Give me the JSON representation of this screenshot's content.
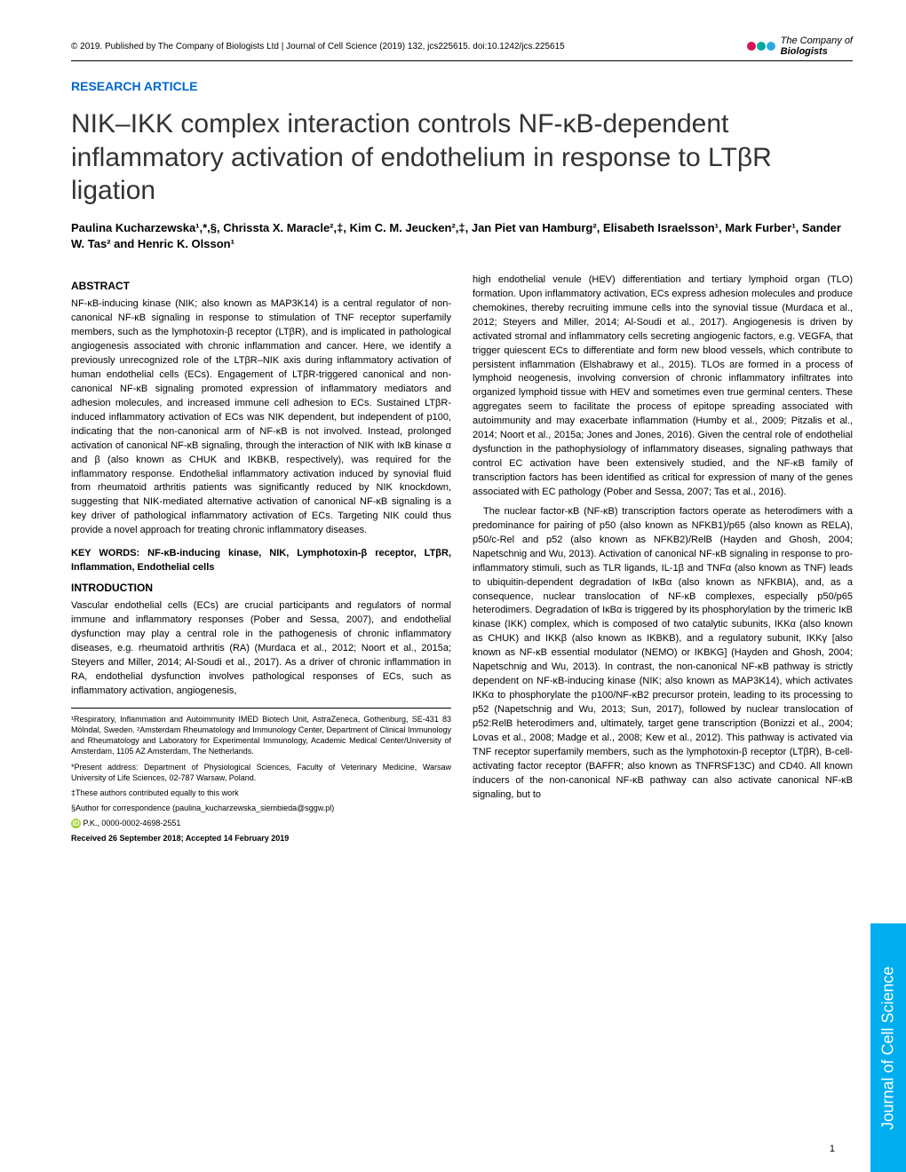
{
  "header": {
    "copyright": "© 2019. Published by The Company of Biologists Ltd | Journal of Cell Science (2019) 132, jcs225615. doi:10.1242/jcs.225615",
    "logo_text_1": "The Company of",
    "logo_text_2": "Biologists",
    "logo_colors": [
      "#d4145a",
      "#00a99d",
      "#29abe2"
    ]
  },
  "section_label": "RESEARCH ARTICLE",
  "title": "NIK–IKK complex interaction controls NF-κB-dependent inflammatory activation of endothelium in response to LTβR ligation",
  "authors": "Paulina Kucharzewska¹,*,§, Chrissta X. Maracle²,‡, Kim C. M. Jeucken²,‡, Jan Piet van Hamburg², Elisabeth Israelsson¹, Mark Furber¹, Sander W. Tas² and Henric K. Olsson¹",
  "abstract": {
    "heading": "ABSTRACT",
    "text": "NF-κB-inducing kinase (NIK; also known as MAP3K14) is a central regulator of non-canonical NF-κB signaling in response to stimulation of TNF receptor superfamily members, such as the lymphotoxin-β receptor (LTβR), and is implicated in pathological angiogenesis associated with chronic inflammation and cancer. Here, we identify a previously unrecognized role of the LTβR–NIK axis during inflammatory activation of human endothelial cells (ECs). Engagement of LTβR-triggered canonical and non-canonical NF-κB signaling promoted expression of inflammatory mediators and adhesion molecules, and increased immune cell adhesion to ECs. Sustained LTβR-induced inflammatory activation of ECs was NIK dependent, but independent of p100, indicating that the non-canonical arm of NF-κB is not involved. Instead, prolonged activation of canonical NF-κB signaling, through the interaction of NIK with IκB kinase α and β (also known as CHUK and IKBKB, respectively), was required for the inflammatory response. Endothelial inflammatory activation induced by synovial fluid from rheumatoid arthritis patients was significantly reduced by NIK knockdown, suggesting that NIK-mediated alternative activation of canonical NF-κB signaling is a key driver of pathological inflammatory activation of ECs. Targeting NIK could thus provide a novel approach for treating chronic inflammatory diseases."
  },
  "keywords": "KEY WORDS: NF-κB-inducing kinase, NIK, Lymphotoxin-β receptor, LTβR, Inflammation, Endothelial cells",
  "introduction": {
    "heading": "INTRODUCTION",
    "text_left": "Vascular endothelial cells (ECs) are crucial participants and regulators of normal immune and inflammatory responses (Pober and Sessa, 2007), and endothelial dysfunction may play a central role in the pathogenesis of chronic inflammatory diseases, e.g. rheumatoid arthritis (RA) (Murdaca et al., 2012; Noort et al., 2015a; Steyers and Miller, 2014; Al-Soudi et al., 2017). As a driver of chronic inflammation in RA, endothelial dysfunction involves pathological responses of ECs, such as inflammatory activation, angiogenesis,",
    "text_right_1": "high endothelial venule (HEV) differentiation and tertiary lymphoid organ (TLO) formation. Upon inflammatory activation, ECs express adhesion molecules and produce chemokines, thereby recruiting immune cells into the synovial tissue (Murdaca et al., 2012; Steyers and Miller, 2014; Al-Soudi et al., 2017). Angiogenesis is driven by activated stromal and inflammatory cells secreting angiogenic factors, e.g. VEGFA, that trigger quiescent ECs to differentiate and form new blood vessels, which contribute to persistent inflammation (Elshabrawy et al., 2015). TLOs are formed in a process of lymphoid neogenesis, involving conversion of chronic inflammatory infiltrates into organized lymphoid tissue with HEV and sometimes even true germinal centers. These aggregates seem to facilitate the process of epitope spreading associated with autoimmunity and may exacerbate inflammation (Humby et al., 2009; Pitzalis et al., 2014; Noort et al., 2015a; Jones and Jones, 2016). Given the central role of endothelial dysfunction in the pathophysiology of inflammatory diseases, signaling pathways that control EC activation have been extensively studied, and the NF-κB family of transcription factors has been identified as critical for expression of many of the genes associated with EC pathology (Pober and Sessa, 2007; Tas et al., 2016).",
    "text_right_2": "The nuclear factor-κB (NF-κB) transcription factors operate as heterodimers with a predominance for pairing of p50 (also known as NFKB1)/p65 (also known as RELA), p50/c-Rel and p52 (also known as NFKB2)/RelB (Hayden and Ghosh, 2004; Napetschnig and Wu, 2013). Activation of canonical NF-κB signaling in response to pro-inflammatory stimuli, such as TLR ligands, IL-1β and TNFα (also known as TNF) leads to ubiquitin-dependent degradation of IκBα (also known as NFKBIA), and, as a consequence, nuclear translocation of NF-κB complexes, especially p50/p65 heterodimers. Degradation of IκBα is triggered by its phosphorylation by the trimeric IκB kinase (IKK) complex, which is composed of two catalytic subunits, IKKα (also known as CHUK) and IKKβ (also known as IKBKB), and a regulatory subunit, IKKγ [also known as NF-κB essential modulator (NEMO) or IKBKG] (Hayden and Ghosh, 2004; Napetschnig and Wu, 2013). In contrast, the non-canonical NF-κB pathway is strictly dependent on NF-κB-inducing kinase (NIK; also known as MAP3K14), which activates IKKα to phosphorylate the p100/NF-κB2 precursor protein, leading to its processing to p52 (Napetschnig and Wu, 2013; Sun, 2017), followed by nuclear translocation of p52:RelB heterodimers and, ultimately, target gene transcription (Bonizzi et al., 2004; Lovas et al., 2008; Madge et al., 2008; Kew et al., 2012). This pathway is activated via TNF receptor superfamily members, such as the lymphotoxin-β receptor (LTβR), B-cell-activating factor receptor (BAFFR; also known as TNFRSF13C) and CD40. All known inducers of the non-canonical NF-κB pathway can also activate canonical NF-κB signaling, but to"
  },
  "affiliations": {
    "line1": "¹Respiratory, Inflammation and Autoimmunity IMED Biotech Unit, AstraZeneca, Gothenburg, SE-431 83 Mölndal, Sweden. ²Amsterdam Rheumatology and Immunology Center, Department of Clinical Immunology and Rheumatology and Laboratory for Experimental Immunology, Academic Medical Center/University of Amsterdam, 1105 AZ Amsterdam, The Netherlands.",
    "line2": "*Present address: Department of Physiological Sciences, Faculty of Veterinary Medicine, Warsaw University of Life Sciences, 02-787 Warsaw, Poland.",
    "line3": "‡These authors contributed equally to this work",
    "line4": "§Author for correspondence (paulina_kucharzewska_siembieda@sggw.pl)",
    "orcid": "P.K., 0000-0002-4698-2551",
    "received": "Received 26 September 2018; Accepted 14 February 2019"
  },
  "side_tab": "Journal of Cell Science",
  "page_number": "1",
  "colors": {
    "link_blue": "#0066cc",
    "side_tab_bg": "#00aeef",
    "orcid_green": "#a6ce39"
  }
}
